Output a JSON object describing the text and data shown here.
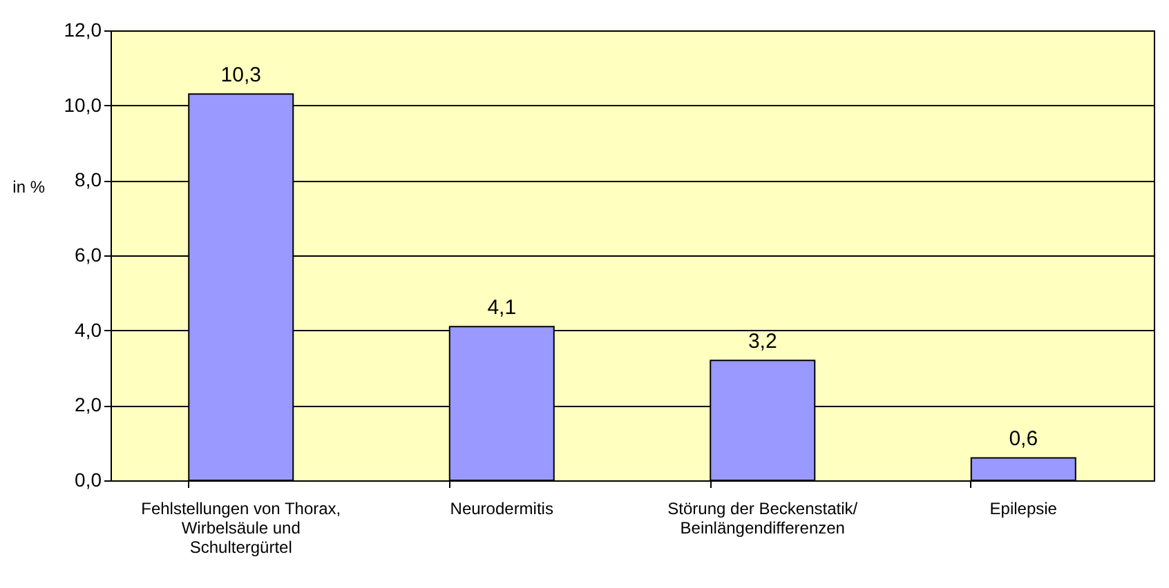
{
  "chart_data": {
    "type": "bar",
    "ylabel": "in %",
    "categories": [
      "Fehlstellungen von Thorax,\nWirbelsäule und\nSchultergürtel",
      "Neurodermitis",
      "Störung der Beckenstatik/\nBeinlängendifferenzen",
      "Epilepsie"
    ],
    "values": [
      10.3,
      4.1,
      3.2,
      0.6
    ],
    "value_labels": [
      "10,3",
      "4,1",
      "3,2",
      "0,6"
    ],
    "color": "#9999ff",
    "ylim": [
      0,
      12
    ],
    "yticks": [
      {
        "value": 0,
        "label": "0,0"
      },
      {
        "value": 2,
        "label": "2,0"
      },
      {
        "value": 4,
        "label": "4,0"
      },
      {
        "value": 6,
        "label": "6,0"
      },
      {
        "value": 8,
        "label": "8,0"
      },
      {
        "value": 10,
        "label": "10,0"
      },
      {
        "value": 12,
        "label": "12,0"
      }
    ],
    "grid": "y"
  }
}
